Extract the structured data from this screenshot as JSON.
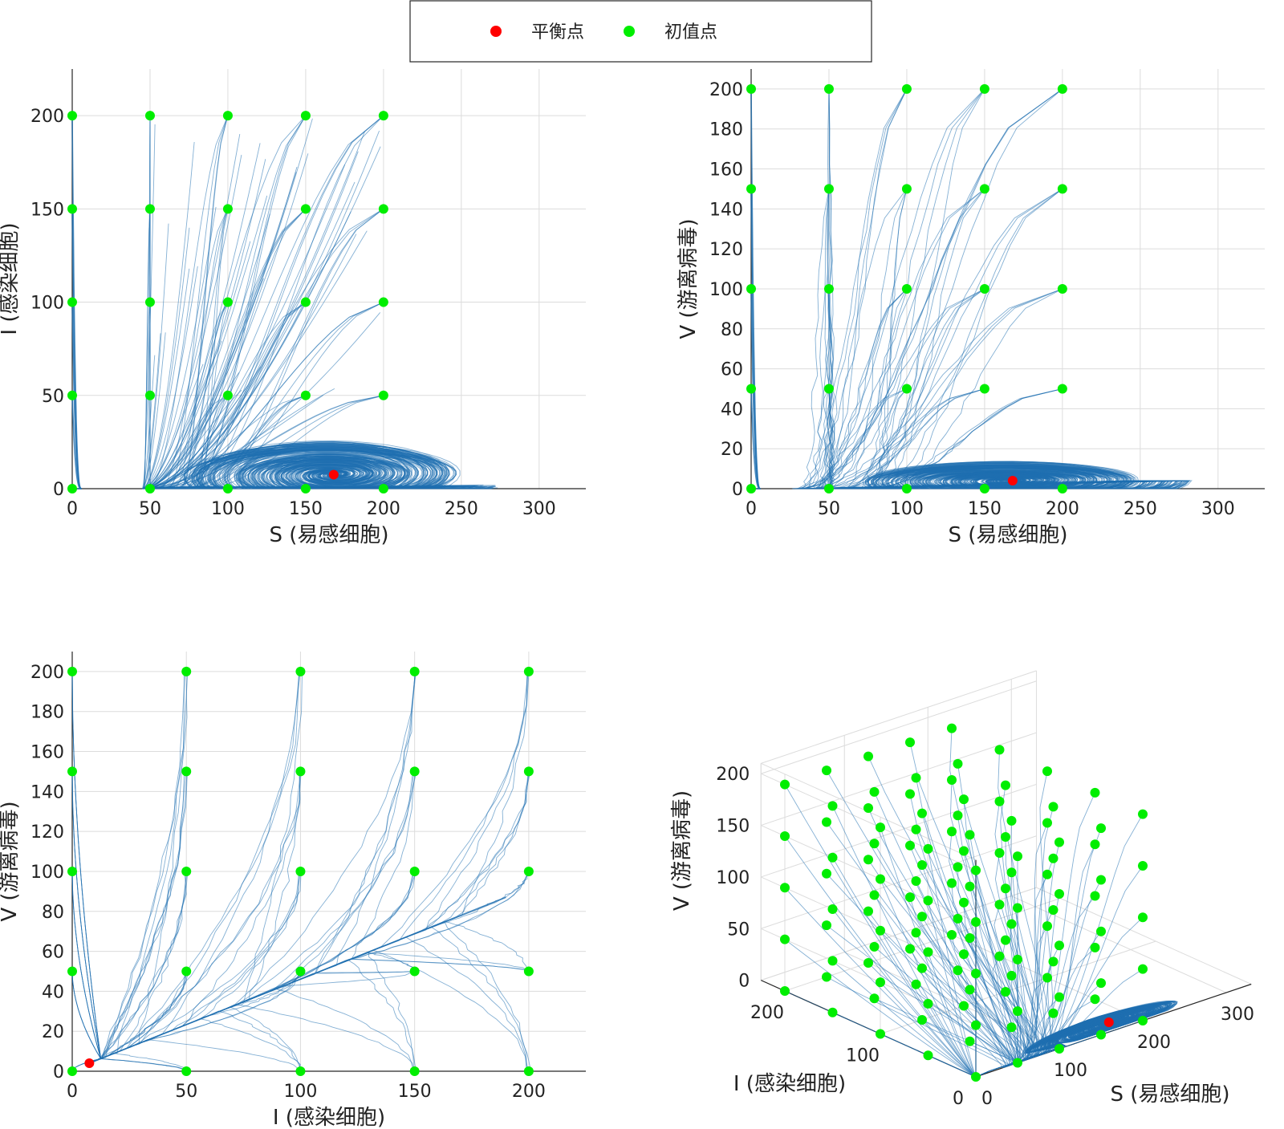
{
  "colors": {
    "equilibrium": "#ff0000",
    "initial": "#00ee00",
    "trajectory": "#1f6fb0",
    "grid": "#dcdcdc"
  },
  "legend": {
    "equilibrium_label": "平衡点",
    "initial_label": "初值点"
  },
  "chart_data": [
    {
      "id": "si",
      "type": "line",
      "xlabel": "S (易感细胞)",
      "ylabel": "I (感染细胞)",
      "xlim": [
        0,
        330
      ],
      "ylim": [
        0,
        225
      ],
      "xticks": [
        0,
        50,
        100,
        150,
        200,
        250,
        300
      ],
      "yticks": [
        0,
        50,
        100,
        150,
        200
      ],
      "equilibrium": [
        168,
        7.5
      ],
      "initial_x": [
        0,
        50,
        100,
        150,
        200
      ],
      "initial_y": [
        0,
        50,
        100,
        150,
        200
      ],
      "grid": true
    },
    {
      "id": "sv",
      "type": "line",
      "xlabel": "S (易感细胞)",
      "ylabel": "V (游离病毒)",
      "xlim": [
        0,
        330
      ],
      "ylim": [
        0,
        210
      ],
      "xticks": [
        0,
        50,
        100,
        150,
        200,
        250,
        300
      ],
      "yticks": [
        0,
        20,
        40,
        60,
        80,
        100,
        120,
        140,
        160,
        180,
        200
      ],
      "equilibrium": [
        168,
        4
      ],
      "initial_x": [
        0,
        50,
        100,
        150,
        200
      ],
      "initial_y": [
        0,
        50,
        100,
        150,
        200
      ],
      "grid": true
    },
    {
      "id": "iv",
      "type": "line",
      "xlabel": "I (感染细胞)",
      "ylabel": "V (游离病毒)",
      "xlim": [
        0,
        225
      ],
      "ylim": [
        0,
        210
      ],
      "xticks": [
        0,
        50,
        100,
        150,
        200
      ],
      "yticks": [
        0,
        20,
        40,
        60,
        80,
        100,
        120,
        140,
        160,
        180,
        200
      ],
      "equilibrium": [
        7.5,
        4
      ],
      "initial_x": [
        0,
        50,
        100,
        150,
        200
      ],
      "initial_y": [
        0,
        50,
        100,
        150,
        200
      ],
      "grid": true
    },
    {
      "id": "siv3d",
      "type": "scatter",
      "xlabel": "S (易感细胞)",
      "ylabel": "I (感染细胞)",
      "zlabel": "V (游离病毒)",
      "xlim": [
        0,
        330
      ],
      "ylim": [
        0,
        225
      ],
      "zlim": [
        0,
        210
      ],
      "xticks": [
        0,
        100,
        200,
        300
      ],
      "yticks": [
        0,
        100,
        200
      ],
      "zticks": [
        0,
        50,
        100,
        150,
        200
      ],
      "equilibrium": [
        168,
        7.5,
        4
      ],
      "initial_values": [
        0,
        50,
        100,
        150,
        200
      ],
      "grid": true
    }
  ]
}
